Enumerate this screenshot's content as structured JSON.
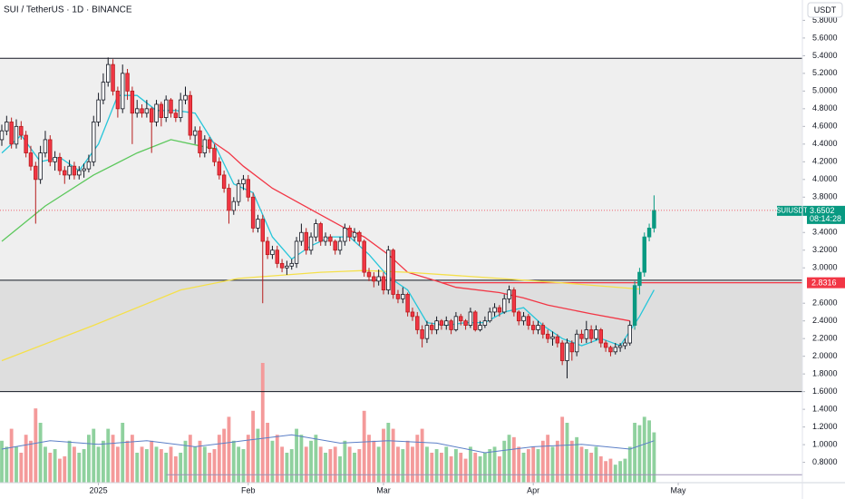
{
  "chart_data": {
    "type": "candlestick",
    "title": "SUI / TetherUS · 1D · BINANCE",
    "currency": "USDT",
    "symbol": "SUIUSDT",
    "countdown": "08:14:28",
    "xlim": [
      -0.375,
      165.7
    ],
    "xticks": [
      {
        "value": 20,
        "label": "2025"
      },
      {
        "value": 51,
        "label": "Feb"
      },
      {
        "value": 79,
        "label": "Mar"
      },
      {
        "value": 110,
        "label": "Apr"
      },
      {
        "value": 140,
        "label": "May"
      }
    ],
    "ylim": [
      0.57,
      6.03
    ],
    "yticks": [
      {
        "value": 5.8,
        "label": "5.8000"
      },
      {
        "value": 5.6,
        "label": "5.6000"
      },
      {
        "value": 5.4,
        "label": "5.4000"
      },
      {
        "value": 5.2,
        "label": "5.2000"
      },
      {
        "value": 5.0,
        "label": "5.0000"
      },
      {
        "value": 4.8,
        "label": "4.8000"
      },
      {
        "value": 4.6,
        "label": "4.6000"
      },
      {
        "value": 4.4,
        "label": "4.4000"
      },
      {
        "value": 4.2,
        "label": "4.2000"
      },
      {
        "value": 4.0,
        "label": "4.0000"
      },
      {
        "value": 3.8,
        "label": "3.8000"
      },
      {
        "value": 3.4,
        "label": "3.4000"
      },
      {
        "value": 3.2,
        "label": "3.2000"
      },
      {
        "value": 3.0,
        "label": "3.0000"
      },
      {
        "value": 2.6,
        "label": "2.6000"
      },
      {
        "value": 2.4,
        "label": "2.4000"
      },
      {
        "value": 2.2,
        "label": "2.2000"
      },
      {
        "value": 2.0,
        "label": "2.0000"
      },
      {
        "value": 1.8,
        "label": "1.8000"
      },
      {
        "value": 1.6,
        "label": "1.6000"
      },
      {
        "value": 1.4,
        "label": "1.4000"
      },
      {
        "value": 1.2,
        "label": "1.2000"
      },
      {
        "value": 1.0,
        "label": "1.0000"
      },
      {
        "value": 0.8,
        "label": "0.8000"
      }
    ],
    "up_color": "#ffffff",
    "down_color": "#f23645",
    "edge_color": "#131722",
    "last_color": "#089981",
    "ohlc": [
      [
        4.45,
        4.62,
        4.38,
        4.55
      ],
      [
        4.55,
        4.72,
        4.5,
        4.65
      ],
      [
        4.65,
        4.7,
        4.35,
        4.4
      ],
      [
        4.4,
        4.68,
        4.35,
        4.6
      ],
      [
        4.6,
        4.66,
        4.45,
        4.5
      ],
      [
        4.5,
        4.55,
        4.25,
        4.3
      ],
      [
        4.3,
        4.38,
        4.1,
        4.15
      ],
      [
        4.15,
        4.2,
        3.5,
        4.0
      ],
      [
        4.0,
        4.38,
        3.95,
        4.3
      ],
      [
        4.3,
        4.55,
        4.25,
        4.45
      ],
      [
        4.45,
        4.5,
        4.15,
        4.2
      ],
      [
        4.2,
        4.32,
        4.1,
        4.25
      ],
      [
        4.25,
        4.3,
        4.05,
        4.1
      ],
      [
        4.1,
        4.15,
        3.95,
        4.05
      ],
      [
        4.05,
        4.22,
        4.0,
        4.15
      ],
      [
        4.15,
        4.2,
        4.0,
        4.05
      ],
      [
        4.05,
        4.15,
        4.0,
        4.1
      ],
      [
        4.1,
        4.18,
        4.02,
        4.12
      ],
      [
        4.12,
        4.28,
        4.08,
        4.2
      ],
      [
        4.2,
        4.72,
        4.15,
        4.65
      ],
      [
        4.65,
        4.98,
        4.6,
        4.9
      ],
      [
        4.9,
        5.2,
        4.85,
        5.1
      ],
      [
        5.1,
        5.38,
        5.05,
        5.3
      ],
      [
        5.3,
        5.36,
        4.95,
        5.0
      ],
      [
        5.0,
        5.05,
        4.7,
        4.8
      ],
      [
        4.8,
        5.3,
        4.75,
        5.2
      ],
      [
        5.2,
        5.25,
        4.9,
        5.0
      ],
      [
        5.0,
        5.05,
        4.4,
        4.75
      ],
      [
        4.75,
        4.9,
        4.7,
        4.8
      ],
      [
        4.8,
        4.85,
        4.7,
        4.75
      ],
      [
        4.75,
        4.9,
        4.7,
        4.8
      ],
      [
        4.8,
        4.82,
        4.3,
        4.65
      ],
      [
        4.65,
        4.9,
        4.6,
        4.85
      ],
      [
        4.85,
        4.88,
        4.6,
        4.7
      ],
      [
        4.7,
        4.95,
        4.65,
        4.9
      ],
      [
        4.9,
        4.92,
        4.7,
        4.75
      ],
      [
        4.75,
        4.8,
        4.65,
        4.7
      ],
      [
        4.7,
        4.98,
        4.65,
        4.9
      ],
      [
        4.9,
        5.05,
        4.85,
        4.95
      ],
      [
        4.95,
        5.0,
        4.45,
        4.5
      ],
      [
        4.5,
        4.6,
        4.4,
        4.55
      ],
      [
        4.55,
        4.6,
        4.25,
        4.3
      ],
      [
        4.3,
        4.5,
        4.25,
        4.45
      ],
      [
        4.45,
        4.48,
        4.3,
        4.35
      ],
      [
        4.35,
        4.4,
        4.15,
        4.2
      ],
      [
        4.2,
        4.25,
        4.0,
        4.05
      ],
      [
        4.05,
        4.1,
        3.85,
        3.9
      ],
      [
        3.9,
        3.95,
        3.5,
        3.65
      ],
      [
        3.65,
        3.8,
        3.6,
        3.75
      ],
      [
        3.75,
        4.0,
        3.7,
        3.95
      ],
      [
        3.95,
        4.05,
        3.88,
        4.0
      ],
      [
        4.0,
        4.05,
        3.75,
        3.8
      ],
      [
        3.8,
        3.85,
        3.4,
        3.45
      ],
      [
        3.45,
        3.6,
        3.4,
        3.55
      ],
      [
        3.55,
        3.6,
        2.6,
        3.3
      ],
      [
        3.3,
        3.35,
        3.1,
        3.15
      ],
      [
        3.15,
        3.25,
        3.1,
        3.2
      ],
      [
        3.2,
        3.25,
        3.0,
        3.05
      ],
      [
        3.05,
        3.1,
        2.95,
        3.0
      ],
      [
        3.0,
        3.08,
        2.92,
        3.02
      ],
      [
        3.02,
        3.1,
        2.98,
        3.05
      ],
      [
        3.05,
        3.35,
        3.0,
        3.3
      ],
      [
        3.3,
        3.5,
        3.25,
        3.4
      ],
      [
        3.4,
        3.45,
        3.15,
        3.2
      ],
      [
        3.2,
        3.4,
        3.15,
        3.35
      ],
      [
        3.35,
        3.55,
        3.3,
        3.5
      ],
      [
        3.5,
        3.52,
        3.25,
        3.3
      ],
      [
        3.3,
        3.4,
        3.25,
        3.35
      ],
      [
        3.35,
        3.38,
        3.25,
        3.3
      ],
      [
        3.3,
        3.32,
        3.15,
        3.2
      ],
      [
        3.2,
        3.35,
        3.15,
        3.3
      ],
      [
        3.3,
        3.5,
        3.25,
        3.45
      ],
      [
        3.45,
        3.48,
        3.3,
        3.35
      ],
      [
        3.35,
        3.45,
        3.3,
        3.4
      ],
      [
        3.4,
        3.42,
        3.25,
        3.3
      ],
      [
        3.3,
        3.32,
        2.9,
        2.95
      ],
      [
        2.95,
        3.0,
        2.85,
        2.9
      ],
      [
        2.9,
        2.95,
        2.78,
        2.85
      ],
      [
        2.85,
        2.98,
        2.8,
        2.9
      ],
      [
        2.9,
        2.95,
        2.7,
        2.75
      ],
      [
        2.75,
        3.25,
        2.7,
        3.2
      ],
      [
        3.2,
        3.22,
        2.65,
        2.7
      ],
      [
        2.7,
        2.75,
        2.6,
        2.65
      ],
      [
        2.65,
        2.78,
        2.6,
        2.7
      ],
      [
        2.7,
        2.72,
        2.45,
        2.5
      ],
      [
        2.5,
        2.55,
        2.4,
        2.45
      ],
      [
        2.45,
        2.5,
        2.25,
        2.3
      ],
      [
        2.3,
        2.35,
        2.1,
        2.2
      ],
      [
        2.2,
        2.4,
        2.15,
        2.35
      ],
      [
        2.35,
        2.38,
        2.25,
        2.3
      ],
      [
        2.3,
        2.45,
        2.25,
        2.4
      ],
      [
        2.4,
        2.42,
        2.3,
        2.35
      ],
      [
        2.35,
        2.45,
        2.3,
        2.4
      ],
      [
        2.4,
        2.42,
        2.25,
        2.3
      ],
      [
        2.3,
        2.5,
        2.28,
        2.45
      ],
      [
        2.45,
        2.48,
        2.35,
        2.4
      ],
      [
        2.4,
        2.42,
        2.3,
        2.35
      ],
      [
        2.35,
        2.55,
        2.32,
        2.5
      ],
      [
        2.5,
        2.52,
        2.28,
        2.3
      ],
      [
        2.3,
        2.4,
        2.28,
        2.35
      ],
      [
        2.35,
        2.45,
        2.32,
        2.4
      ],
      [
        2.4,
        2.55,
        2.38,
        2.5
      ],
      [
        2.5,
        2.6,
        2.45,
        2.55
      ],
      [
        2.55,
        2.58,
        2.45,
        2.5
      ],
      [
        2.5,
        2.7,
        2.48,
        2.65
      ],
      [
        2.65,
        2.8,
        2.6,
        2.75
      ],
      [
        2.75,
        2.78,
        2.45,
        2.5
      ],
      [
        2.5,
        2.52,
        2.35,
        2.4
      ],
      [
        2.4,
        2.5,
        2.35,
        2.45
      ],
      [
        2.45,
        2.48,
        2.3,
        2.35
      ],
      [
        2.35,
        2.4,
        2.25,
        2.3
      ],
      [
        2.3,
        2.4,
        2.25,
        2.35
      ],
      [
        2.35,
        2.38,
        2.2,
        2.25
      ],
      [
        2.25,
        2.3,
        2.15,
        2.2
      ],
      [
        2.2,
        2.28,
        2.12,
        2.22
      ],
      [
        2.22,
        2.25,
        2.1,
        2.15
      ],
      [
        2.15,
        2.18,
        1.9,
        1.95
      ],
      [
        1.95,
        2.2,
        1.75,
        2.15
      ],
      [
        2.15,
        2.18,
        1.95,
        2.05
      ],
      [
        2.05,
        2.3,
        2.0,
        2.25
      ],
      [
        2.25,
        2.3,
        2.15,
        2.2
      ],
      [
        2.2,
        2.4,
        2.15,
        2.3
      ],
      [
        2.3,
        2.35,
        2.15,
        2.2
      ],
      [
        2.2,
        2.35,
        2.18,
        2.3
      ],
      [
        2.3,
        2.32,
        2.1,
        2.15
      ],
      [
        2.15,
        2.18,
        2.05,
        2.1
      ],
      [
        2.1,
        2.12,
        2.0,
        2.05
      ],
      [
        2.05,
        2.15,
        2.02,
        2.1
      ],
      [
        2.1,
        2.15,
        2.05,
        2.12
      ],
      [
        2.12,
        2.2,
        2.08,
        2.15
      ],
      [
        2.15,
        2.4,
        2.12,
        2.35
      ],
      [
        2.35,
        2.85,
        2.3,
        2.8
      ],
      [
        2.8,
        3.0,
        2.7,
        2.95
      ],
      [
        2.95,
        3.4,
        2.9,
        3.35
      ],
      [
        3.35,
        3.5,
        3.3,
        3.45
      ],
      [
        3.45,
        3.82,
        3.4,
        3.6502
      ]
    ],
    "volume_ylim": [
      0,
      100
    ],
    "volume_up_color": "#8fd19e",
    "volume_down_color": "#f49a9a",
    "volume": [
      35,
      30,
      45,
      30,
      25,
      40,
      35,
      62,
      50,
      30,
      25,
      28,
      20,
      22,
      35,
      30,
      25,
      28,
      40,
      45,
      30,
      35,
      45,
      40,
      30,
      50,
      35,
      40,
      25,
      30,
      28,
      35,
      30,
      28,
      25,
      30,
      22,
      25,
      35,
      40,
      30,
      35,
      30,
      25,
      28,
      40,
      45,
      55,
      35,
      30,
      28,
      40,
      60,
      45,
      100,
      50,
      35,
      40,
      30,
      25,
      28,
      45,
      40,
      30,
      35,
      40,
      30,
      25,
      28,
      30,
      22,
      35,
      30,
      25,
      28,
      60,
      40,
      35,
      30,
      45,
      50,
      45,
      30,
      28,
      35,
      30,
      40,
      45,
      30,
      25,
      28,
      25,
      30,
      22,
      28,
      25,
      20,
      30,
      25,
      22,
      25,
      28,
      30,
      22,
      35,
      40,
      38,
      30,
      25,
      28,
      30,
      28,
      35,
      40,
      30,
      35,
      55,
      50,
      35,
      38,
      30,
      28,
      25,
      30,
      22,
      18,
      20,
      15,
      18,
      20,
      30,
      50,
      48,
      55,
      52,
      42
    ],
    "volume_line": {
      "color": "#5b7fc7",
      "x": [
        0,
        10,
        20,
        30,
        40,
        50,
        60,
        70,
        80,
        90,
        100,
        110,
        120,
        130,
        135
      ],
      "values": [
        28,
        35,
        32,
        35,
        30,
        35,
        40,
        33,
        35,
        33,
        25,
        30,
        32,
        28,
        35
      ]
    },
    "lines": [
      {
        "color": "#f23645",
        "x": [
          43,
          47,
          50,
          56,
          61,
          66,
          71,
          75,
          80,
          84,
          90,
          94,
          103,
          108,
          113,
          122,
          130
        ],
        "values": [
          4.45,
          4.3,
          4.15,
          3.9,
          3.75,
          3.6,
          3.45,
          3.35,
          3.15,
          2.95,
          2.85,
          2.78,
          2.72,
          2.66,
          2.58,
          2.48,
          2.4
        ]
      },
      {
        "color": "#f5e04a",
        "x": [
          0,
          19,
          37,
          49,
          66,
          75,
          84,
          103,
          116,
          132
        ],
        "values": [
          1.95,
          2.35,
          2.75,
          2.88,
          2.95,
          2.97,
          2.95,
          2.88,
          2.83,
          2.76
        ]
      },
      {
        "color": "#5cc85c",
        "x": [
          0,
          9,
          19,
          28,
          35,
          41,
          44
        ],
        "values": [
          3.3,
          3.7,
          4.05,
          4.3,
          4.45,
          4.38,
          4.35
        ]
      },
      {
        "color": "#26c6da",
        "x": [
          0,
          4,
          8,
          12,
          16,
          20,
          24,
          28,
          32,
          36,
          40,
          44,
          48,
          52,
          56,
          60,
          64,
          68,
          72,
          76,
          80,
          84,
          88,
          92,
          96,
          100,
          104,
          108,
          112,
          116,
          120,
          124,
          128,
          132,
          135
        ],
        "values": [
          4.3,
          4.5,
          4.2,
          4.25,
          4.1,
          4.4,
          4.95,
          4.95,
          4.78,
          4.78,
          4.75,
          4.4,
          3.95,
          3.85,
          3.35,
          3.1,
          3.25,
          3.35,
          3.35,
          3.15,
          2.9,
          2.75,
          2.38,
          2.35,
          2.38,
          2.38,
          2.5,
          2.55,
          2.35,
          2.2,
          2.12,
          2.2,
          2.12,
          2.45,
          2.75
        ]
      }
    ],
    "zones": [
      {
        "from": 2.86,
        "to": 5.37,
        "color": "#efefef"
      },
      {
        "from": 1.6,
        "to": 2.86,
        "color": "#dedede"
      }
    ],
    "levels": [
      {
        "value": 5.37,
        "color": "#131722"
      },
      {
        "value": 2.86,
        "color": "#131722"
      },
      {
        "value": 1.6,
        "color": "#131722"
      },
      {
        "value": 0.66,
        "color": "#9c8fb5",
        "x_start": 34
      }
    ],
    "marker_level": {
      "value": 2.8316,
      "color": "#f23645",
      "x_start": 91
    }
  }
}
